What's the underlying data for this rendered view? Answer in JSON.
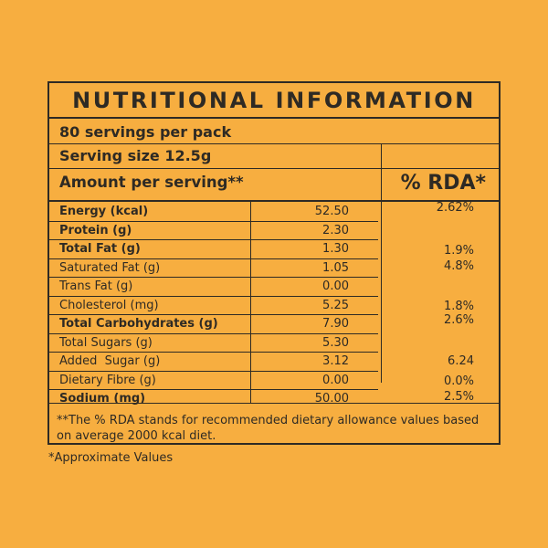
{
  "title": "NUTRITIONAL INFORMATION",
  "servings_per_pack": "80 servings per pack",
  "serving_size": "Serving size 12.5g",
  "amount_header": "Amount per serving**",
  "rda_header": "% RDA*",
  "rows": [
    {
      "label": "Energy (kcal)",
      "value": "52.50",
      "rda": "2.62%"
    },
    {
      "label": "Protein (g)",
      "value": "2.30",
      "rda": ""
    },
    {
      "label": "Total Fat (g)",
      "value": "1.30",
      "rda": "1.9%"
    },
    {
      "label": "Saturated Fat (g)",
      "value": "1.05",
      "rda": "4.8%"
    },
    {
      "label": "Trans Fat (g)",
      "value": "0.00",
      "rda": ""
    },
    {
      "label": "Cholesterol (mg)",
      "value": "5.25",
      "rda": "1.8%"
    },
    {
      "label": "Total Carbohydrates (g)",
      "value": "7.90",
      "rda": "2.6%"
    },
    {
      "label": "Total Sugars (g)",
      "value": "5.30",
      "rda": ""
    },
    {
      "label": "Added  Sugar (g)",
      "value": "3.12",
      "rda": "6.24"
    },
    {
      "label": "Dietary Fibre (g)",
      "value": "0.00",
      "rda": "0.0%"
    },
    {
      "label": "Sodium (mg)",
      "value": "50.00",
      "rda": "2.5%"
    }
  ],
  "footnote": "**The % RDA stands for recommended dietary allowance values based on average 2000 kcal diet.",
  "approx_note": "*Approximate Values",
  "colors": {
    "background": "#F7AE40",
    "ink": "#2E2A24"
  }
}
